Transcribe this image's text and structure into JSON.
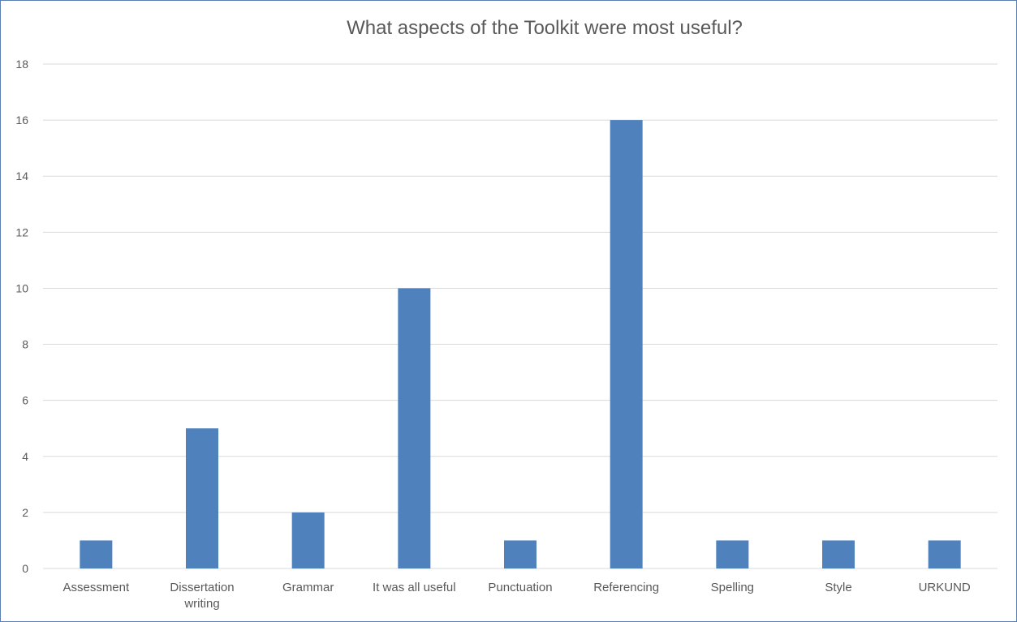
{
  "chart_data": {
    "type": "bar",
    "title": "What aspects of the Toolkit were most useful?",
    "categories": [
      "Assessment",
      "Dissertation writing",
      "Grammar",
      "It was all useful",
      "Punctuation",
      "Referencing",
      "Spelling",
      "Style",
      "URKUND"
    ],
    "category_lines": [
      [
        "Assessment"
      ],
      [
        "Dissertation",
        "writing"
      ],
      [
        "Grammar"
      ],
      [
        "It was all useful"
      ],
      [
        "Punctuation"
      ],
      [
        "Referencing"
      ],
      [
        "Spelling"
      ],
      [
        "Style"
      ],
      [
        "URKUND"
      ]
    ],
    "values": [
      1,
      5,
      2,
      10,
      1,
      16,
      1,
      1,
      1
    ],
    "ylim": [
      0,
      18
    ],
    "yticks": [
      0,
      2,
      4,
      6,
      8,
      10,
      12,
      14,
      16,
      18
    ],
    "grid": true,
    "legend": "none",
    "bar_color": "#4f81bd",
    "grid_color": "#d9d9d9",
    "text_color": "#595959"
  }
}
